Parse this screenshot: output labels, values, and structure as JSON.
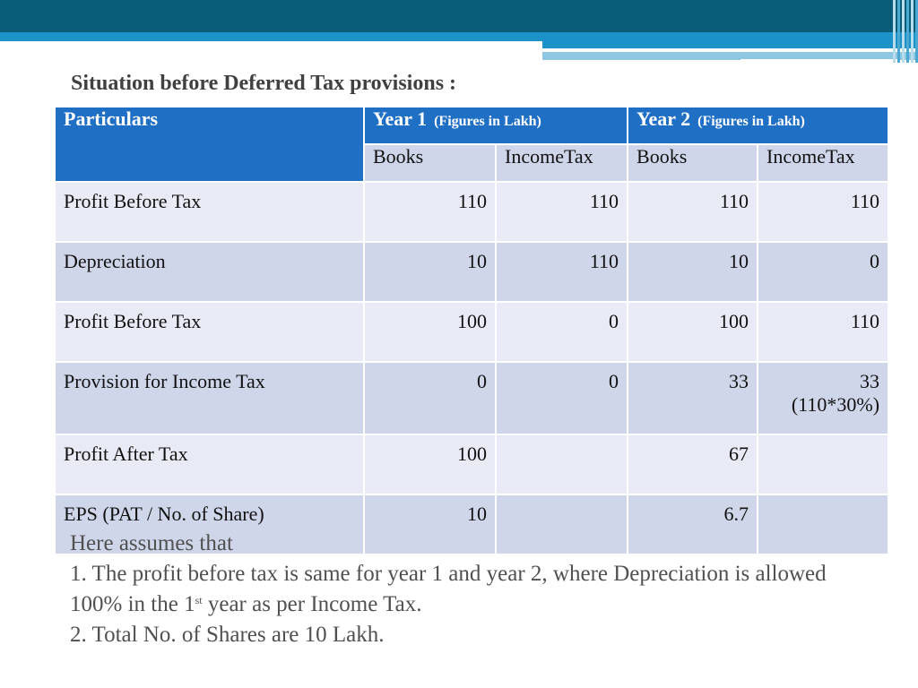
{
  "title": "Situation before Deferred Tax provisions :",
  "table": {
    "particulars_header": "Particulars",
    "year1": {
      "label": "Year 1",
      "note": "(Figures in Lakh)"
    },
    "year2": {
      "label": "Year 2",
      "note": "(Figures in Lakh)"
    },
    "subheaders": [
      "Books",
      "IncomeTax",
      "Books",
      "IncomeTax"
    ],
    "rows": [
      {
        "label": "Profit Before Tax",
        "y1_books": "110",
        "y1_tax": "110",
        "y2_books": "110",
        "y2_tax": "110",
        "y2_tax_note": ""
      },
      {
        "label": "Depreciation",
        "y1_books": "10",
        "y1_tax": "110",
        "y2_books": "10",
        "y2_tax": "0",
        "y2_tax_note": ""
      },
      {
        "label": "Profit Before Tax",
        "y1_books": "100",
        "y1_tax": "0",
        "y2_books": "100",
        "y2_tax": "110",
        "y2_tax_note": ""
      },
      {
        "label": "Provision for Income Tax",
        "y1_books": "0",
        "y1_tax": "0",
        "y2_books": "33",
        "y2_tax": "33",
        "y2_tax_note": "(110*30%)"
      },
      {
        "label": "Profit After Tax",
        "y1_books": "100",
        "y1_tax": "",
        "y2_books": "67",
        "y2_tax": "",
        "y2_tax_note": ""
      },
      {
        "label": "EPS (PAT / No. of Share)",
        "y1_books": "10",
        "y1_tax": "",
        "y2_books": "6.7",
        "y2_tax": "",
        "y2_tax_note": ""
      }
    ]
  },
  "notes": {
    "intro": "Here assumes that",
    "line1_start": "1. The profit before tax is same for year 1 and year 2, where Depreciation is allowed 100% in the 1",
    "line1_sup": "st",
    "line1_end": " year as per Income Tax.",
    "line2": "2. Total No. of Shares are 10 Lakh."
  }
}
